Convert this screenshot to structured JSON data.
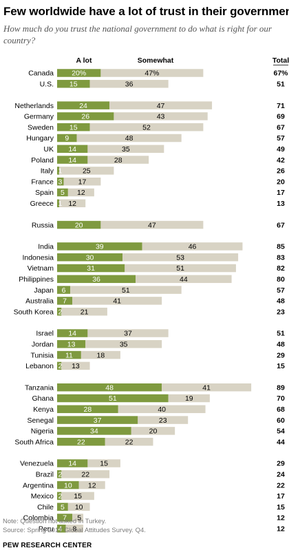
{
  "title": "Few worldwide have a lot of trust in their government",
  "subtitle": "How much do you trust the national government to do what is right for our country?",
  "note": "Note: Question not asked in Turkey.",
  "source": "Source: Spring 2017 Global Attitudes Survey. Q4.",
  "brand": "PEW RESEARCH CENTER",
  "colors": {
    "alot": "#7f9a3f",
    "somewhat": "#d8d3c4"
  },
  "chart_data": {
    "type": "bar",
    "stacked": true,
    "orientation": "horizontal",
    "legend": {
      "alot": "A lot",
      "somewhat": "Somewhat",
      "total": "Total"
    },
    "groups": [
      {
        "rows": [
          {
            "country": "Canada",
            "alot": 20,
            "somewhat": 47,
            "total": 67,
            "alot_label": "20%",
            "somewhat_label": "47%",
            "total_label": "67%"
          },
          {
            "country": "U.S.",
            "alot": 15,
            "somewhat": 36,
            "total": 51,
            "alot_label": "15",
            "somewhat_label": "36",
            "total_label": "51"
          }
        ]
      },
      {
        "rows": [
          {
            "country": "Netherlands",
            "alot": 24,
            "somewhat": 47,
            "total": 71,
            "alot_label": "24",
            "somewhat_label": "47",
            "total_label": "71"
          },
          {
            "country": "Germany",
            "alot": 26,
            "somewhat": 43,
            "total": 69,
            "alot_label": "26",
            "somewhat_label": "43",
            "total_label": "69"
          },
          {
            "country": "Sweden",
            "alot": 15,
            "somewhat": 52,
            "total": 67,
            "alot_label": "15",
            "somewhat_label": "52",
            "total_label": "67"
          },
          {
            "country": "Hungary",
            "alot": 9,
            "somewhat": 48,
            "total": 57,
            "alot_label": "9",
            "somewhat_label": "48",
            "total_label": "57"
          },
          {
            "country": "UK",
            "alot": 14,
            "somewhat": 35,
            "total": 49,
            "alot_label": "14",
            "somewhat_label": "35",
            "total_label": "49"
          },
          {
            "country": "Poland",
            "alot": 14,
            "somewhat": 28,
            "total": 42,
            "alot_label": "14",
            "somewhat_label": "28",
            "total_label": "42"
          },
          {
            "country": "Italy",
            "alot": 1,
            "somewhat": 25,
            "total": 26,
            "alot_label": "1",
            "somewhat_label": "25",
            "total_label": "26"
          },
          {
            "country": "France",
            "alot": 3,
            "somewhat": 17,
            "total": 20,
            "alot_label": "3",
            "somewhat_label": "17",
            "total_label": "20"
          },
          {
            "country": "Spain",
            "alot": 5,
            "somewhat": 12,
            "total": 17,
            "alot_label": "5",
            "somewhat_label": "12",
            "total_label": "17"
          },
          {
            "country": "Greece",
            "alot": 1,
            "somewhat": 12,
            "total": 13,
            "alot_label": "1",
            "somewhat_label": "12",
            "total_label": "13"
          }
        ]
      },
      {
        "rows": [
          {
            "country": "Russia",
            "alot": 20,
            "somewhat": 47,
            "total": 67,
            "alot_label": "20",
            "somewhat_label": "47",
            "total_label": "67"
          }
        ]
      },
      {
        "rows": [
          {
            "country": "India",
            "alot": 39,
            "somewhat": 46,
            "total": 85,
            "alot_label": "39",
            "somewhat_label": "46",
            "total_label": "85"
          },
          {
            "country": "Indonesia",
            "alot": 30,
            "somewhat": 53,
            "total": 83,
            "alot_label": "30",
            "somewhat_label": "53",
            "total_label": "83"
          },
          {
            "country": "Vietnam",
            "alot": 31,
            "somewhat": 51,
            "total": 82,
            "alot_label": "31",
            "somewhat_label": "51",
            "total_label": "82"
          },
          {
            "country": "Philippines",
            "alot": 36,
            "somewhat": 44,
            "total": 80,
            "alot_label": "36",
            "somewhat_label": "44",
            "total_label": "80"
          },
          {
            "country": "Japan",
            "alot": 6,
            "somewhat": 51,
            "total": 57,
            "alot_label": "6",
            "somewhat_label": "51",
            "total_label": "57"
          },
          {
            "country": "Australia",
            "alot": 7,
            "somewhat": 41,
            "total": 48,
            "alot_label": "7",
            "somewhat_label": "41",
            "total_label": "48"
          },
          {
            "country": "South Korea",
            "alot": 2,
            "somewhat": 21,
            "total": 23,
            "alot_label": "2",
            "somewhat_label": "21",
            "total_label": "23"
          }
        ]
      },
      {
        "rows": [
          {
            "country": "Israel",
            "alot": 14,
            "somewhat": 37,
            "total": 51,
            "alot_label": "14",
            "somewhat_label": "37",
            "total_label": "51"
          },
          {
            "country": "Jordan",
            "alot": 13,
            "somewhat": 35,
            "total": 48,
            "alot_label": "13",
            "somewhat_label": "35",
            "total_label": "48"
          },
          {
            "country": "Tunisia",
            "alot": 11,
            "somewhat": 18,
            "total": 29,
            "alot_label": "11",
            "somewhat_label": "18",
            "total_label": "29"
          },
          {
            "country": "Lebanon",
            "alot": 2,
            "somewhat": 13,
            "total": 15,
            "alot_label": "2",
            "somewhat_label": "13",
            "total_label": "15"
          }
        ]
      },
      {
        "rows": [
          {
            "country": "Tanzania",
            "alot": 48,
            "somewhat": 41,
            "total": 89,
            "alot_label": "48",
            "somewhat_label": "41",
            "total_label": "89"
          },
          {
            "country": "Ghana",
            "alot": 51,
            "somewhat": 19,
            "total": 70,
            "alot_label": "51",
            "somewhat_label": "19",
            "total_label": "70"
          },
          {
            "country": "Kenya",
            "alot": 28,
            "somewhat": 40,
            "total": 68,
            "alot_label": "28",
            "somewhat_label": "40",
            "total_label": "68"
          },
          {
            "country": "Senegal",
            "alot": 37,
            "somewhat": 23,
            "total": 60,
            "alot_label": "37",
            "somewhat_label": "23",
            "total_label": "60"
          },
          {
            "country": "Nigeria",
            "alot": 34,
            "somewhat": 20,
            "total": 54,
            "alot_label": "34",
            "somewhat_label": "20",
            "total_label": "54"
          },
          {
            "country": "South Africa",
            "alot": 22,
            "somewhat": 22,
            "total": 44,
            "alot_label": "22",
            "somewhat_label": "22",
            "total_label": "44"
          }
        ]
      },
      {
        "rows": [
          {
            "country": "Venezuela",
            "alot": 14,
            "somewhat": 15,
            "total": 29,
            "alot_label": "14",
            "somewhat_label": "15",
            "total_label": "29"
          },
          {
            "country": "Brazil",
            "alot": 2,
            "somewhat": 22,
            "total": 24,
            "alot_label": "2",
            "somewhat_label": "22",
            "total_label": "24"
          },
          {
            "country": "Argentina",
            "alot": 10,
            "somewhat": 12,
            "total": 22,
            "alot_label": "10",
            "somewhat_label": "12",
            "total_label": "22"
          },
          {
            "country": "Mexico",
            "alot": 2,
            "somewhat": 15,
            "total": 17,
            "alot_label": "2",
            "somewhat_label": "15",
            "total_label": "17"
          },
          {
            "country": "Chile",
            "alot": 5,
            "somewhat": 10,
            "total": 15,
            "alot_label": "5",
            "somewhat_label": "10",
            "total_label": "15"
          },
          {
            "country": "Colombia",
            "alot": 7,
            "somewhat": 5,
            "total": 12,
            "alot_label": "7",
            "somewhat_label": "5",
            "total_label": "12"
          },
          {
            "country": "Peru",
            "alot": 4,
            "somewhat": 8,
            "total": 12,
            "alot_label": "4",
            "somewhat_label": "8",
            "total_label": "12"
          }
        ]
      }
    ]
  }
}
